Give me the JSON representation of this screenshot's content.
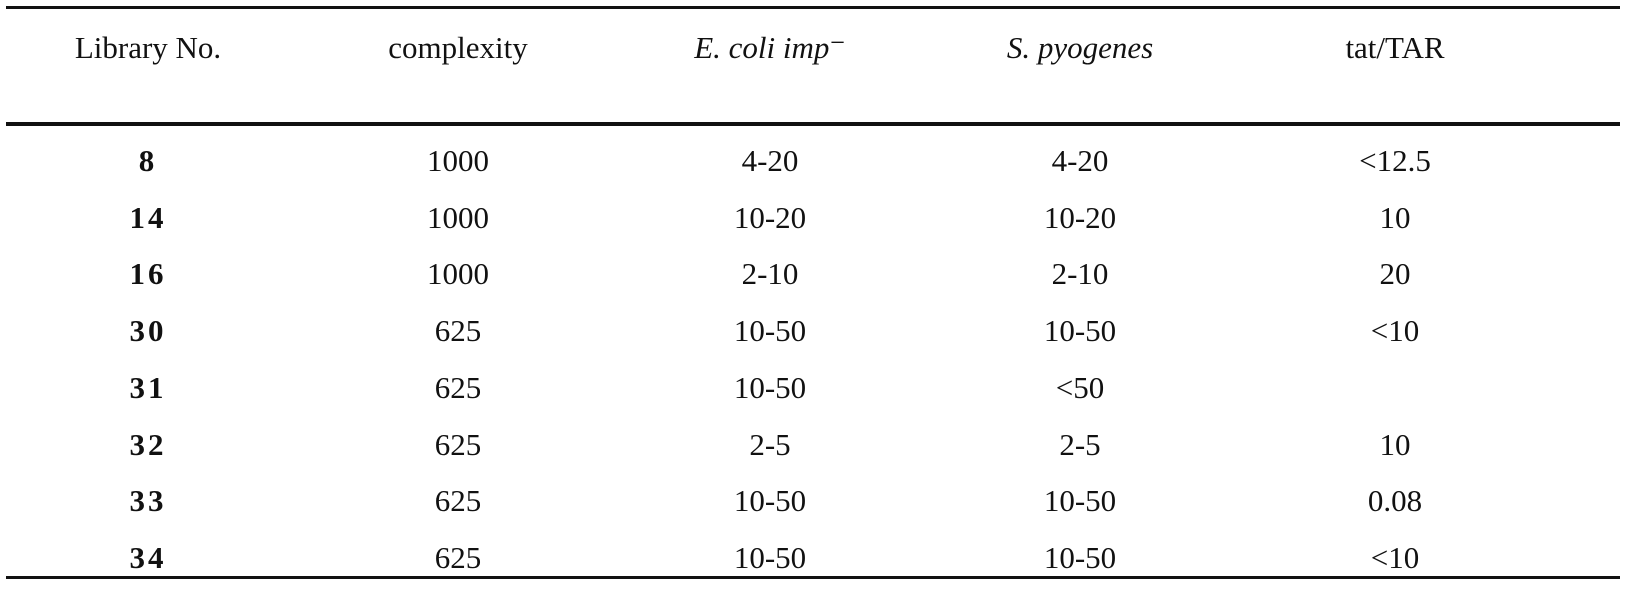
{
  "table": {
    "headers": [
      "Library No.",
      "complexity",
      "E. coli imp⁻",
      "S. pyogenes",
      "tat/TAR"
    ],
    "rows": [
      [
        "8",
        "1000",
        "4-20",
        "4-20",
        "<12.5"
      ],
      [
        "14",
        "1000",
        "10-20",
        "10-20",
        "10"
      ],
      [
        "16",
        "1000",
        "2-10",
        "2-10",
        "20"
      ],
      [
        "30",
        "625",
        "10-50",
        "10-50",
        "<10"
      ],
      [
        "31",
        "625",
        "10-50",
        "<50",
        null
      ],
      [
        "32",
        "625",
        "2-5",
        "2-5",
        "10"
      ],
      [
        "33",
        "625",
        "10-50",
        "10-50",
        "0.08"
      ],
      [
        "34",
        "625",
        "10-50",
        "10-50",
        "<10"
      ]
    ]
  }
}
